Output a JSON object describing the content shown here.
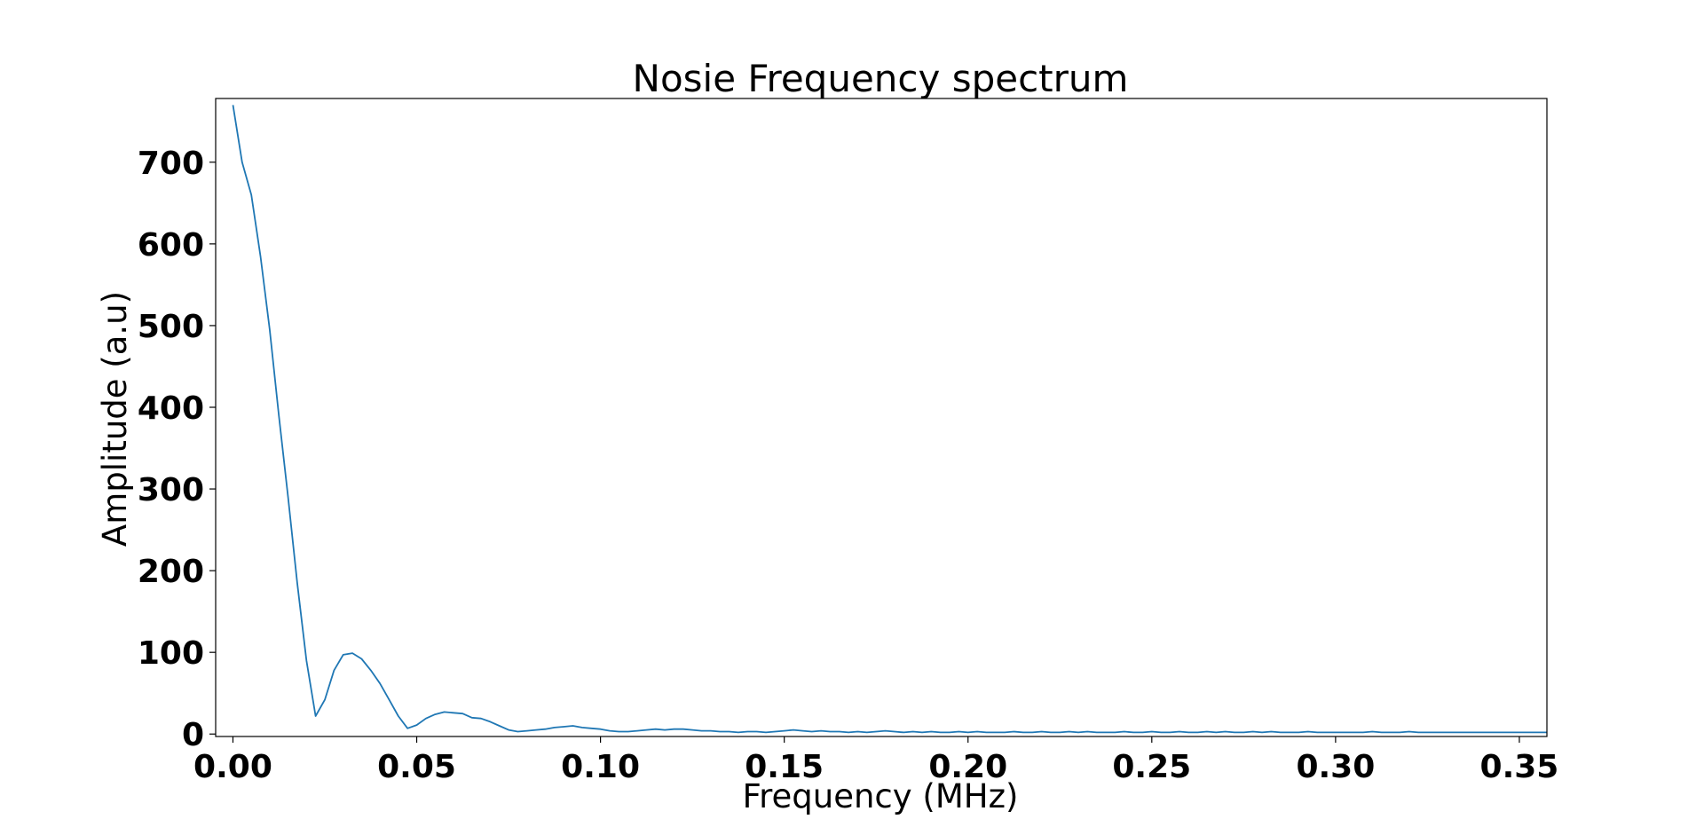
{
  "chart_data": {
    "type": "line",
    "title": "Nosie Frequency spectrum",
    "xlabel": "Frequency (MHz)",
    "ylabel": "Amplitude (a.u)",
    "xlim": [
      -0.0047,
      0.3575
    ],
    "ylim": [
      -3,
      778
    ],
    "x_ticks": [
      0.0,
      0.05,
      0.1,
      0.15,
      0.2,
      0.25,
      0.3,
      0.35
    ],
    "x_tick_labels": [
      "0.00",
      "0.05",
      "0.10",
      "0.15",
      "0.20",
      "0.25",
      "0.30",
      "0.35"
    ],
    "y_ticks": [
      0,
      100,
      200,
      300,
      400,
      500,
      600,
      700
    ],
    "y_tick_labels": [
      "0",
      "100",
      "200",
      "300",
      "400",
      "500",
      "600",
      "700"
    ],
    "grid": false,
    "line_color": "#1f77b4",
    "series": [
      {
        "x": [
          0.0,
          0.0025,
          0.005,
          0.0075,
          0.01,
          0.0125,
          0.015,
          0.0175,
          0.02,
          0.0225,
          0.025,
          0.0275,
          0.03,
          0.0325,
          0.035,
          0.0375,
          0.04,
          0.0425,
          0.045,
          0.0475,
          0.05,
          0.0525,
          0.055,
          0.0575,
          0.06,
          0.0625,
          0.065,
          0.0675,
          0.07,
          0.0725,
          0.075,
          0.0775,
          0.08,
          0.0825,
          0.085,
          0.0875,
          0.09,
          0.0925,
          0.095,
          0.0975,
          0.1,
          0.1025,
          0.105,
          0.1075,
          0.11,
          0.1125,
          0.115,
          0.1175,
          0.12,
          0.1225,
          0.125,
          0.1275,
          0.13,
          0.1325,
          0.135,
          0.1375,
          0.14,
          0.1425,
          0.145,
          0.1475,
          0.15,
          0.1525,
          0.155,
          0.1575,
          0.16,
          0.1625,
          0.165,
          0.1675,
          0.17,
          0.1725,
          0.175,
          0.1775,
          0.18,
          0.1825,
          0.185,
          0.1875,
          0.19,
          0.1925,
          0.195,
          0.1975,
          0.2,
          0.2025,
          0.205,
          0.2075,
          0.21,
          0.2125,
          0.215,
          0.2175,
          0.22,
          0.2225,
          0.225,
          0.2275,
          0.23,
          0.2325,
          0.235,
          0.2375,
          0.24,
          0.2425,
          0.245,
          0.2475,
          0.25,
          0.2525,
          0.255,
          0.2575,
          0.26,
          0.2625,
          0.265,
          0.2675,
          0.27,
          0.2725,
          0.275,
          0.2775,
          0.28,
          0.2825,
          0.285,
          0.2875,
          0.29,
          0.2925,
          0.295,
          0.2975,
          0.3,
          0.3025,
          0.305,
          0.3075,
          0.31,
          0.3125,
          0.315,
          0.3175,
          0.32,
          0.3225,
          0.325,
          0.3275,
          0.33,
          0.3325,
          0.335,
          0.3375,
          0.34,
          0.3425,
          0.345,
          0.3475,
          0.35,
          0.3525,
          0.355,
          0.3575
        ],
        "values": [
          770,
          700,
          660,
          585,
          495,
          390,
          290,
          185,
          90,
          22,
          42,
          78,
          97,
          99,
          92,
          78,
          62,
          42,
          22,
          7,
          11,
          19,
          24,
          27,
          26,
          25,
          20,
          19,
          15,
          10,
          5,
          3,
          4,
          5,
          6,
          8,
          9,
          10,
          8,
          7,
          6,
          4,
          3,
          3,
          4,
          5,
          6,
          5,
          6,
          6,
          5,
          4,
          4,
          3,
          3,
          2,
          3,
          3,
          2,
          3,
          4,
          5,
          4,
          3,
          4,
          3,
          3,
          2,
          3,
          2,
          3,
          4,
          3,
          2,
          3,
          2,
          3,
          2,
          2,
          3,
          2,
          3,
          2,
          2,
          2,
          3,
          2,
          2,
          3,
          2,
          2,
          3,
          2,
          3,
          2,
          2,
          2,
          3,
          2,
          2,
          3,
          2,
          2,
          3,
          2,
          2,
          3,
          2,
          3,
          2,
          2,
          3,
          2,
          3,
          2,
          2,
          2,
          3,
          2,
          2,
          2,
          2,
          2,
          2,
          3,
          2,
          2,
          2,
          3,
          2,
          2,
          2,
          2,
          2,
          2,
          2,
          2,
          2,
          2,
          2,
          2,
          2,
          2,
          2
        ]
      }
    ]
  }
}
